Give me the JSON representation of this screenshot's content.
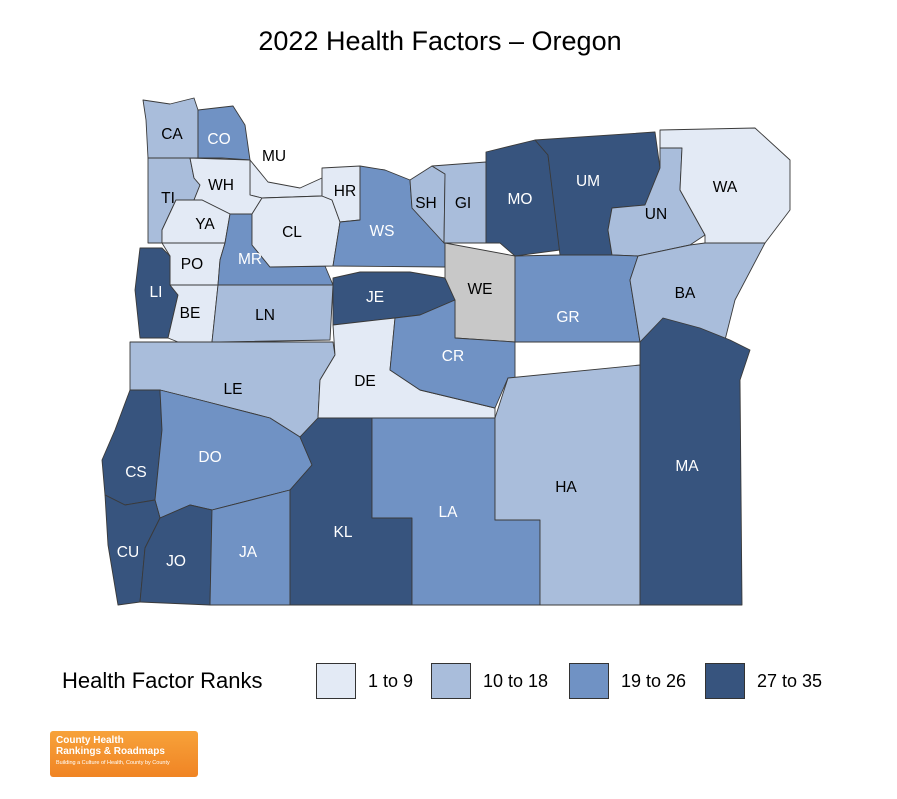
{
  "title": "2022 Health Factors – Oregon",
  "colors": {
    "rank_1_9": "#e3eaf5",
    "rank_10_18": "#a9bddb",
    "rank_19_26": "#7092c4",
    "rank_27_35": "#37547e",
    "no_data": "#c8c8c8",
    "border": "#3a3a3a"
  },
  "legend": {
    "title": "Health Factor Ranks",
    "items": [
      {
        "label": "1 to 9",
        "class": "rank_1_9"
      },
      {
        "label": "10 to 18",
        "class": "rank_10_18"
      },
      {
        "label": "19 to 26",
        "class": "rank_19_26"
      },
      {
        "label": "27 to 35",
        "class": "rank_27_35"
      }
    ]
  },
  "counties": [
    {
      "abbr": "CA",
      "class": "rank_10_18"
    },
    {
      "abbr": "CO",
      "class": "rank_19_26"
    },
    {
      "abbr": "MU",
      "class": "rank_1_9"
    },
    {
      "abbr": "TI",
      "class": "rank_10_18"
    },
    {
      "abbr": "WH",
      "class": "rank_1_9"
    },
    {
      "abbr": "YA",
      "class": "rank_1_9"
    },
    {
      "abbr": "PO",
      "class": "rank_1_9"
    },
    {
      "abbr": "MR",
      "class": "rank_19_26"
    },
    {
      "abbr": "CL",
      "class": "rank_1_9"
    },
    {
      "abbr": "HR",
      "class": "rank_1_9"
    },
    {
      "abbr": "WS",
      "class": "rank_19_26"
    },
    {
      "abbr": "SH",
      "class": "rank_10_18"
    },
    {
      "abbr": "GI",
      "class": "rank_10_18"
    },
    {
      "abbr": "MO",
      "class": "rank_27_35"
    },
    {
      "abbr": "UM",
      "class": "rank_27_35"
    },
    {
      "abbr": "UN",
      "class": "rank_10_18"
    },
    {
      "abbr": "WA",
      "class": "rank_1_9"
    },
    {
      "abbr": "LI",
      "class": "rank_27_35"
    },
    {
      "abbr": "BE",
      "class": "rank_1_9"
    },
    {
      "abbr": "LN",
      "class": "rank_10_18"
    },
    {
      "abbr": "JE",
      "class": "rank_27_35"
    },
    {
      "abbr": "WE",
      "class": "no_data"
    },
    {
      "abbr": "GR",
      "class": "rank_19_26"
    },
    {
      "abbr": "BA",
      "class": "rank_10_18"
    },
    {
      "abbr": "LE",
      "class": "rank_10_18"
    },
    {
      "abbr": "DE",
      "class": "rank_1_9"
    },
    {
      "abbr": "CR",
      "class": "rank_19_26"
    },
    {
      "abbr": "CS",
      "class": "rank_27_35"
    },
    {
      "abbr": "DO",
      "class": "rank_19_26"
    },
    {
      "abbr": "CU",
      "class": "rank_27_35"
    },
    {
      "abbr": "JO",
      "class": "rank_27_35"
    },
    {
      "abbr": "JA",
      "class": "rank_19_26"
    },
    {
      "abbr": "KL",
      "class": "rank_27_35"
    },
    {
      "abbr": "LA",
      "class": "rank_19_26"
    },
    {
      "abbr": "HA",
      "class": "rank_10_18"
    },
    {
      "abbr": "MA",
      "class": "rank_27_35"
    }
  ],
  "logo": {
    "main": "County Health\nRankings & Roadmaps",
    "tagline": "Building a Culture of Health, County by County"
  }
}
